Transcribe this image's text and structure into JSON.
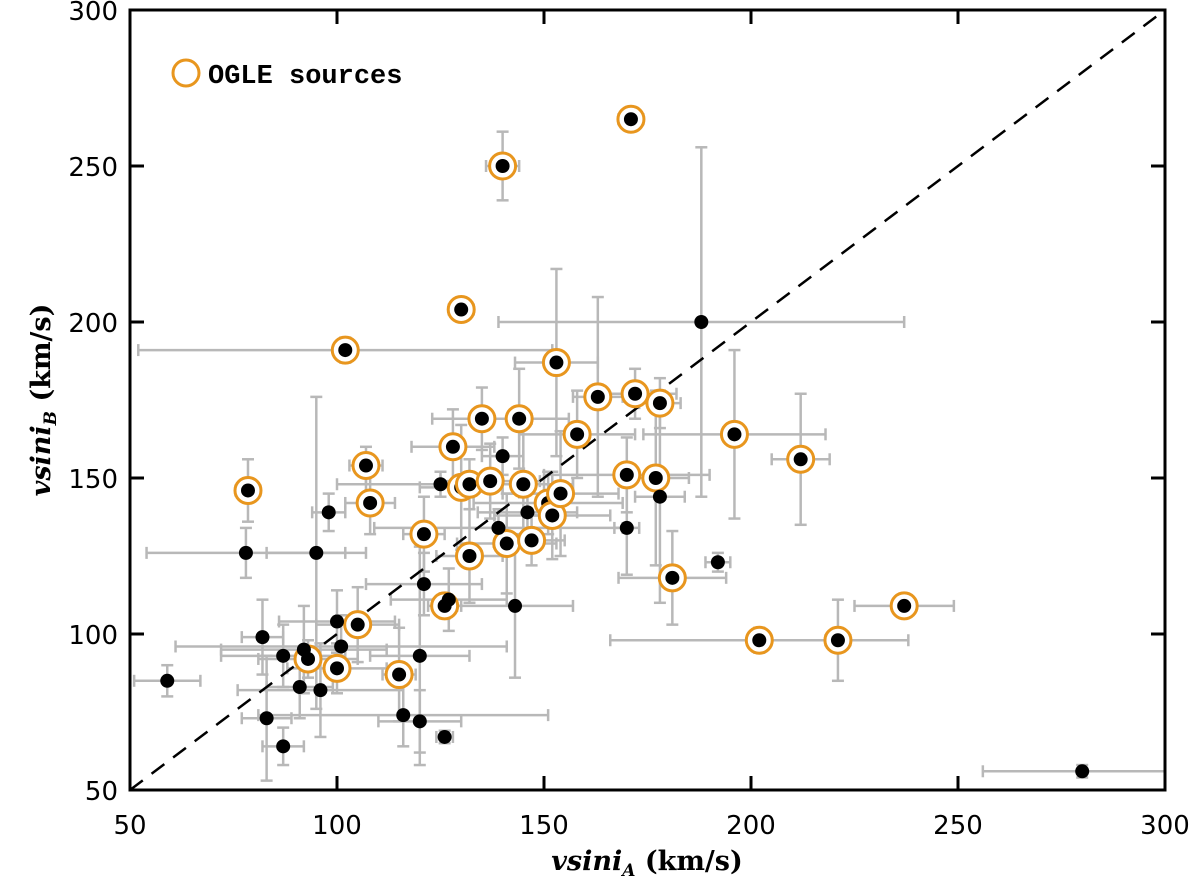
{
  "chart_data": {
    "type": "scatter",
    "xlabel": {
      "main": "vsini",
      "sub": "A",
      "unit": " (km/s)"
    },
    "ylabel": {
      "main": "vsini",
      "sub": "B",
      "unit": " (km/s)"
    },
    "xlim": [
      50,
      300
    ],
    "ylim": [
      50,
      300
    ],
    "xticks": [
      "50",
      "100",
      "150",
      "200",
      "250",
      "300"
    ],
    "yticks": [
      "50",
      "100",
      "150",
      "200",
      "250",
      "300"
    ],
    "grid": false,
    "reference_line": "y = x (dashed)",
    "legend": {
      "position": "top-left",
      "label": "OGLE sources"
    },
    "colors": {
      "point": "#000000",
      "ogle_ring": "#e8961e",
      "errorbar": "#b8b8b8"
    },
    "point_fields": [
      "vsini_A",
      "vsini_B",
      "err_A",
      "err_B",
      "ogle"
    ],
    "points": [
      [
        171,
        265,
        3,
        3,
        true
      ],
      [
        140,
        250,
        4,
        11,
        true
      ],
      [
        130,
        204,
        3,
        3,
        true
      ],
      [
        102,
        191,
        50,
        4,
        true
      ],
      [
        153,
        187,
        10,
        30,
        true
      ],
      [
        163,
        176,
        6,
        32,
        true
      ],
      [
        172,
        177,
        10,
        8,
        true
      ],
      [
        178,
        174,
        5,
        8,
        true
      ],
      [
        135,
        169,
        12,
        10,
        true
      ],
      [
        144,
        169,
        12,
        16,
        true
      ],
      [
        158,
        164,
        14,
        14,
        true
      ],
      [
        196,
        164,
        22,
        27,
        true
      ],
      [
        78.5,
        146,
        3,
        10,
        true
      ],
      [
        107,
        154,
        4,
        6,
        true
      ],
      [
        108,
        142,
        6,
        10,
        true
      ],
      [
        128,
        160,
        10,
        12,
        true
      ],
      [
        130,
        147,
        10,
        20,
        true
      ],
      [
        132,
        148,
        25,
        8,
        true
      ],
      [
        137,
        149,
        12,
        12,
        true
      ],
      [
        145,
        148,
        12,
        18,
        true
      ],
      [
        151,
        142,
        18,
        10,
        true
      ],
      [
        152,
        138,
        14,
        14,
        true
      ],
      [
        154,
        145,
        14,
        20,
        true
      ],
      [
        170,
        151,
        20,
        12,
        true
      ],
      [
        177,
        150,
        8,
        28,
        true
      ],
      [
        212,
        156,
        7,
        21,
        true
      ],
      [
        121,
        132,
        5,
        12,
        true
      ],
      [
        132,
        125,
        8,
        15,
        true
      ],
      [
        141,
        129,
        12,
        16,
        true
      ],
      [
        147,
        130,
        8,
        8,
        true
      ],
      [
        181,
        118,
        13,
        15,
        true
      ],
      [
        126,
        109,
        4,
        4,
        true
      ],
      [
        237,
        109,
        12,
        3,
        true
      ],
      [
        105,
        103,
        10,
        12,
        true
      ],
      [
        100,
        89,
        12,
        8,
        true
      ],
      [
        93,
        92,
        12,
        6,
        true
      ],
      [
        115,
        87,
        4,
        15,
        true
      ],
      [
        202,
        98,
        36,
        4,
        true
      ],
      [
        221,
        98,
        3,
        13,
        true
      ],
      [
        188,
        200,
        49,
        56,
        false
      ],
      [
        140,
        157,
        5,
        6,
        false
      ],
      [
        125,
        148,
        25,
        4,
        false
      ],
      [
        178,
        144,
        6,
        34,
        false
      ],
      [
        170,
        134,
        3,
        15,
        false
      ],
      [
        139,
        134,
        30,
        6,
        false
      ],
      [
        146,
        139,
        12,
        6,
        false
      ],
      [
        98,
        139,
        4,
        6,
        false
      ],
      [
        78,
        126,
        24,
        8,
        false
      ],
      [
        95,
        126,
        12,
        50,
        false
      ],
      [
        192,
        123,
        3,
        3,
        false
      ],
      [
        143,
        109,
        14,
        23,
        false
      ],
      [
        127,
        111,
        14,
        10,
        false
      ],
      [
        121,
        116,
        14,
        10,
        false
      ],
      [
        100,
        104,
        14,
        10,
        false
      ],
      [
        101,
        96,
        40,
        10,
        false
      ],
      [
        92,
        95,
        20,
        14,
        false
      ],
      [
        82,
        99,
        5,
        12,
        false
      ],
      [
        87,
        93,
        15,
        10,
        false
      ],
      [
        91,
        83,
        8,
        10,
        false
      ],
      [
        96,
        82,
        20,
        15,
        false
      ],
      [
        120,
        93,
        12,
        35,
        false
      ],
      [
        59,
        85,
        8,
        5,
        false
      ],
      [
        83,
        73,
        6,
        20,
        false
      ],
      [
        87,
        64,
        5,
        6,
        false
      ],
      [
        116,
        74,
        35,
        10,
        false
      ],
      [
        120,
        72,
        10,
        10,
        false
      ],
      [
        126,
        67,
        2,
        2,
        false
      ],
      [
        280,
        56,
        24,
        2,
        false
      ]
    ]
  }
}
